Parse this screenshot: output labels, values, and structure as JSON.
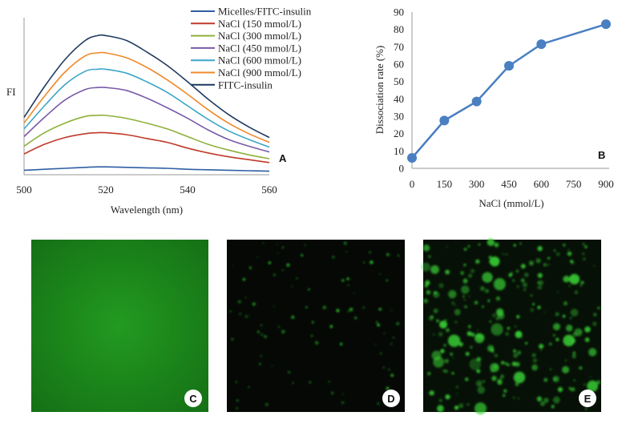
{
  "chart_data": [
    {
      "type": "line",
      "panel_label": "A",
      "xlabel": "Wavelength (nm)",
      "ylabel": "FI",
      "xlim": [
        500,
        560
      ],
      "x_ticks": [
        "500",
        "520",
        "540",
        "560"
      ],
      "grid": false,
      "legend_position": "top-right",
      "series": [
        {
          "name": "Micelles/FITC-insulin",
          "color": "#2e5fa3",
          "x": [
            500,
            505,
            510,
            515,
            518,
            520,
            525,
            530,
            535,
            540,
            545,
            550,
            555,
            560
          ],
          "y": [
            3,
            4,
            5,
            6,
            6.5,
            6.5,
            6,
            5.5,
            5,
            4,
            3.5,
            3,
            2.5,
            2
          ]
        },
        {
          "name": "NaCl (150 mmol/L)",
          "color": "#c0392b",
          "x": [
            500,
            505,
            510,
            515,
            518,
            520,
            525,
            530,
            535,
            540,
            545,
            550,
            555,
            560
          ],
          "y": [
            20,
            30,
            37,
            41,
            42,
            42,
            40,
            36,
            32,
            26,
            21,
            17,
            14,
            11
          ]
        },
        {
          "name": "NaCl (300 mmol/L)",
          "color": "#8fb03c",
          "x": [
            500,
            505,
            510,
            515,
            518,
            520,
            525,
            530,
            535,
            540,
            545,
            550,
            555,
            560
          ],
          "y": [
            28,
            42,
            52,
            59,
            60,
            60,
            57,
            52,
            46,
            38,
            30,
            24,
            19,
            15
          ]
        },
        {
          "name": "NaCl (450 mmol/L)",
          "color": "#7a5aa6",
          "x": [
            500,
            505,
            510,
            515,
            518,
            520,
            525,
            530,
            535,
            540,
            545,
            550,
            555,
            560
          ],
          "y": [
            38,
            58,
            76,
            87,
            89,
            89,
            86,
            78,
            68,
            57,
            45,
            35,
            28,
            22
          ]
        },
        {
          "name": "NaCl (600 mmol/L)",
          "color": "#3ba6c8",
          "x": [
            500,
            505,
            510,
            515,
            518,
            520,
            525,
            530,
            535,
            540,
            545,
            550,
            555,
            560
          ],
          "y": [
            46,
            70,
            92,
            106,
            108,
            108,
            104,
            95,
            84,
            70,
            56,
            44,
            35,
            27
          ]
        },
        {
          "name": "NaCl (900 mmol/L)",
          "color": "#f0892a",
          "x": [
            500,
            505,
            510,
            515,
            518,
            520,
            525,
            530,
            535,
            540,
            545,
            550,
            555,
            560
          ],
          "y": [
            52,
            80,
            105,
            122,
            125,
            125,
            120,
            110,
            97,
            82,
            66,
            52,
            41,
            32
          ]
        },
        {
          "name": "FITC-insulin",
          "color": "#1f3a5f",
          "x": [
            500,
            505,
            510,
            515,
            518,
            520,
            525,
            530,
            535,
            540,
            545,
            550,
            555,
            560
          ],
          "y": [
            58,
            90,
            118,
            138,
            143,
            143,
            138,
            126,
            112,
            95,
            77,
            61,
            48,
            37
          ]
        }
      ]
    },
    {
      "type": "line",
      "panel_label": "B",
      "xlabel": "NaCl (mmol/L)",
      "ylabel": "Dissociation rate (%)",
      "xlim": [
        0,
        900
      ],
      "ylim": [
        0,
        90
      ],
      "x_ticks": [
        0,
        150,
        300,
        450,
        600,
        750,
        900
      ],
      "y_ticks": [
        0,
        10,
        20,
        30,
        40,
        50,
        60,
        70,
        80,
        90
      ],
      "grid": false,
      "color": "#4a7fc1",
      "x": [
        0,
        150,
        300,
        450,
        600,
        900
      ],
      "y": [
        6,
        27.5,
        38.5,
        59,
        71.5,
        83
      ]
    }
  ],
  "micrographs": [
    {
      "panel_label": "C",
      "background": "#1c8a1a"
    },
    {
      "panel_label": "D",
      "background": "#050805",
      "dot_color": "#2fd12a"
    },
    {
      "panel_label": "E",
      "background": "#061006",
      "dot_color": "#3ad336"
    }
  ]
}
